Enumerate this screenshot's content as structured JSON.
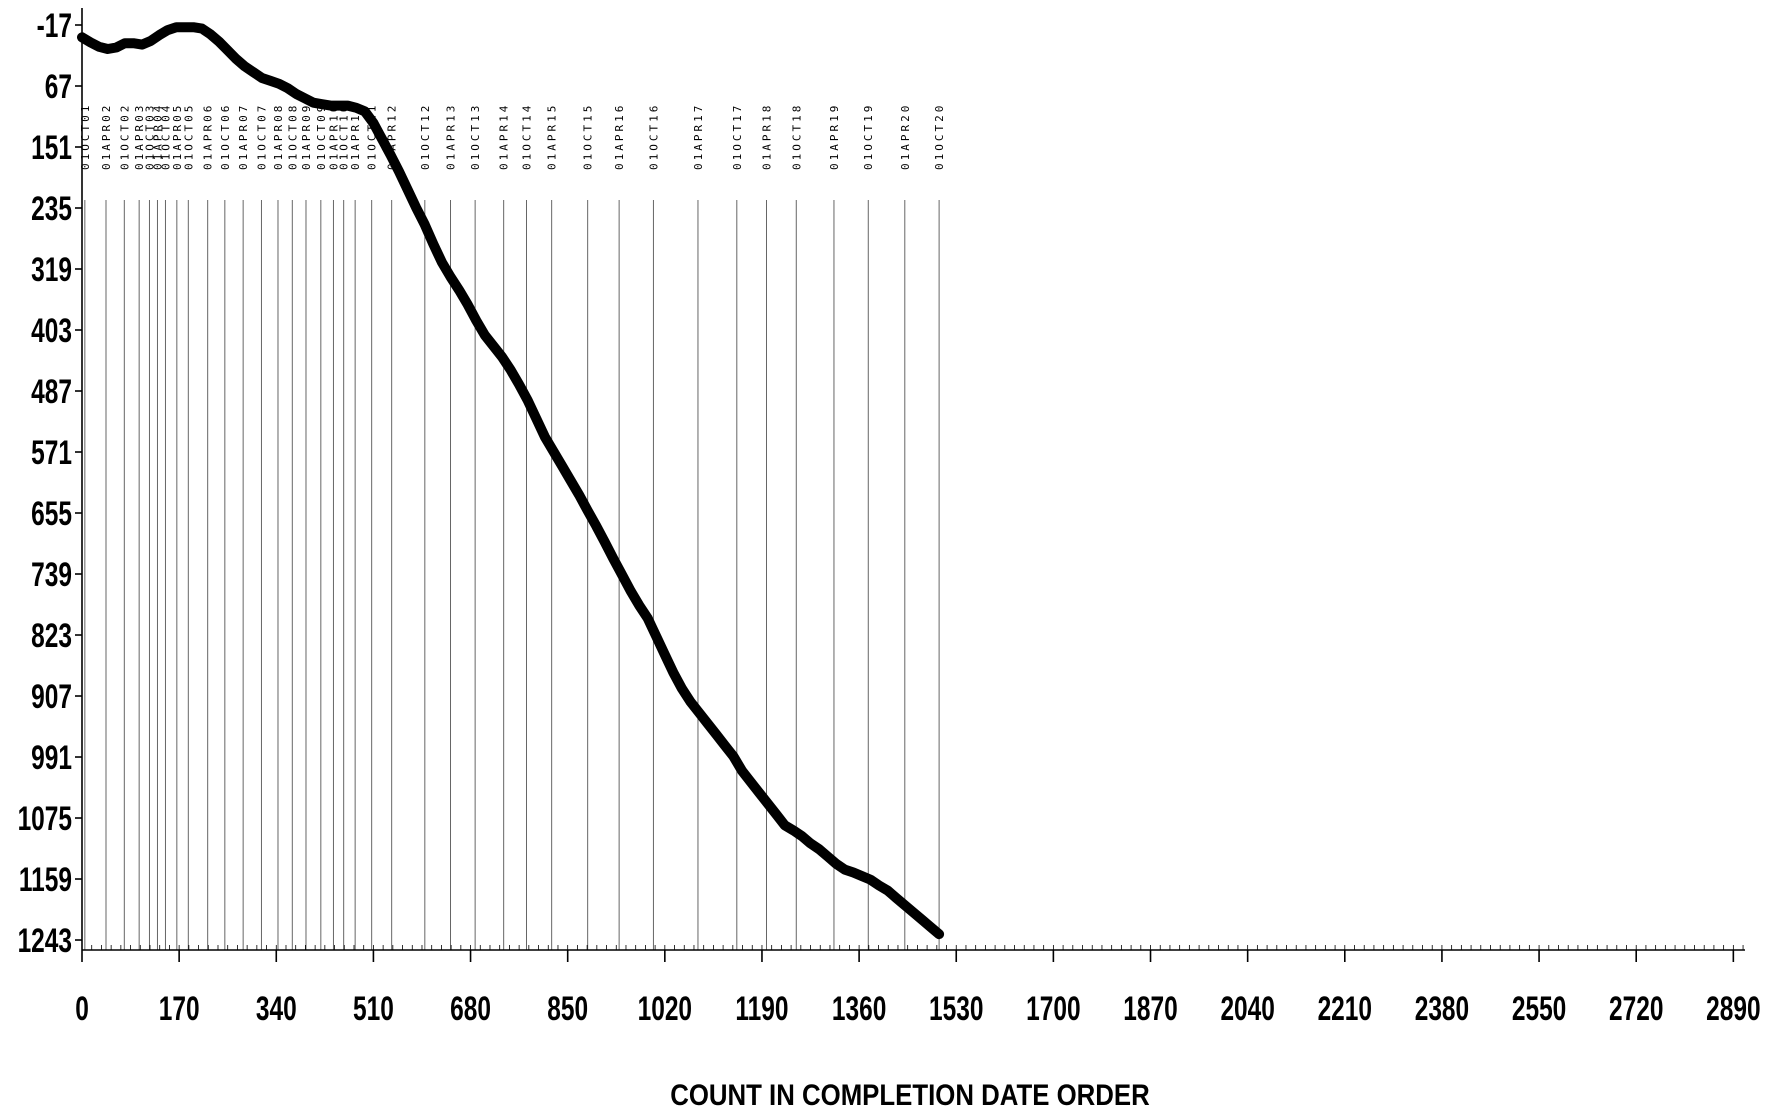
{
  "chart_data": {
    "type": "line",
    "title": "",
    "xlabel": "COUNT IN COMPLETION DATE ORDER",
    "ylabel": "",
    "xlim": [
      0,
      2920
    ],
    "ylim": [
      -17,
      1243
    ],
    "y_inverted": true,
    "x_ticks": [
      0,
      170,
      340,
      510,
      680,
      850,
      1020,
      1190,
      1360,
      1530,
      1700,
      1870,
      2040,
      2210,
      2380,
      2550,
      2720,
      2890
    ],
    "y_ticks": [
      -17,
      67,
      151,
      235,
      319,
      403,
      487,
      571,
      655,
      739,
      823,
      907,
      991,
      1075,
      1159,
      1243
    ],
    "series": [
      {
        "color": "#000000",
        "x": [
          0,
          15,
          30,
          45,
          60,
          75,
          90,
          105,
          120,
          135,
          150,
          165,
          180,
          195,
          210,
          225,
          240,
          255,
          270,
          285,
          300,
          315,
          330,
          345,
          360,
          375,
          390,
          405,
          420,
          435,
          450,
          465,
          480,
          495,
          510,
          525,
          540,
          555,
          570,
          585,
          600,
          615,
          630,
          645,
          660,
          675,
          690,
          705,
          720,
          735,
          750,
          765,
          780,
          795,
          810,
          825,
          840,
          855,
          870,
          885,
          900,
          915,
          930,
          945,
          960,
          975,
          990,
          1005,
          1020,
          1035,
          1050,
          1065,
          1080,
          1095,
          1110,
          1125,
          1140,
          1155,
          1170,
          1185,
          1200,
          1215,
          1230,
          1245,
          1260,
          1275,
          1290,
          1305,
          1320,
          1335,
          1350,
          1365,
          1380,
          1395,
          1410,
          1425,
          1440,
          1455,
          1470,
          1485,
          1500
        ],
        "y": [
          0,
          7,
          13,
          16,
          14,
          8,
          8,
          10,
          5,
          -3,
          -10,
          -14,
          -14,
          -14,
          -12,
          -4,
          6,
          18,
          30,
          40,
          48,
          56,
          60,
          64,
          70,
          78,
          84,
          90,
          92,
          94,
          94,
          94,
          97,
          102,
          118,
          140,
          162,
          185,
          210,
          235,
          258,
          285,
          310,
          330,
          348,
          368,
          390,
          410,
          425,
          440,
          458,
          478,
          500,
          525,
          550,
          570,
          590,
          610,
          630,
          652,
          673,
          695,
          718,
          740,
          762,
          782,
          800,
          825,
          850,
          875,
          897,
          915,
          930,
          945,
          960,
          975,
          990,
          1010,
          1025,
          1040,
          1055,
          1070,
          1085,
          1092,
          1100,
          1110,
          1118,
          1128,
          1138,
          1146,
          1150,
          1155,
          1160,
          1168,
          1175,
          1185,
          1195,
          1205,
          1215,
          1225,
          1235
        ]
      }
    ],
    "date_markers": [
      {
        "x": 5,
        "label": "01OCT01"
      },
      {
        "x": 42,
        "label": "01APR02"
      },
      {
        "x": 74,
        "label": "01OCT02"
      },
      {
        "x": 100,
        "label": "01APR03"
      },
      {
        "x": 118,
        "label": "01OCT03"
      },
      {
        "x": 132,
        "label": "01APR04"
      },
      {
        "x": 146,
        "label": "01OCT04"
      },
      {
        "x": 166,
        "label": "01APR05"
      },
      {
        "x": 186,
        "label": "01OCT05"
      },
      {
        "x": 220,
        "label": "01APR06"
      },
      {
        "x": 250,
        "label": "01OCT06"
      },
      {
        "x": 282,
        "label": "01APR07"
      },
      {
        "x": 314,
        "label": "01OCT07"
      },
      {
        "x": 343,
        "label": "01APR08"
      },
      {
        "x": 368,
        "label": "01OCT08"
      },
      {
        "x": 392,
        "label": "01APR09"
      },
      {
        "x": 418,
        "label": "01OCT09"
      },
      {
        "x": 440,
        "label": "01APR10"
      },
      {
        "x": 458,
        "label": "01OCT10"
      },
      {
        "x": 478,
        "label": "01APR11"
      },
      {
        "x": 507,
        "label": "01OCT11"
      },
      {
        "x": 542,
        "label": "01APR12"
      },
      {
        "x": 600,
        "label": "01OCT12"
      },
      {
        "x": 645,
        "label": "01APR13"
      },
      {
        "x": 688,
        "label": "01OCT13"
      },
      {
        "x": 738,
        "label": "01APR14"
      },
      {
        "x": 778,
        "label": "01OCT14"
      },
      {
        "x": 822,
        "label": "01APR15"
      },
      {
        "x": 885,
        "label": "01OCT15"
      },
      {
        "x": 940,
        "label": "01APR16"
      },
      {
        "x": 1000,
        "label": "01OCT16"
      },
      {
        "x": 1078,
        "label": "01APR17"
      },
      {
        "x": 1146,
        "label": "01OCT17"
      },
      {
        "x": 1198,
        "label": "01APR18"
      },
      {
        "x": 1250,
        "label": "01OCT18"
      },
      {
        "x": 1316,
        "label": "01APR19"
      },
      {
        "x": 1376,
        "label": "01OCT19"
      },
      {
        "x": 1440,
        "label": "01APR20"
      },
      {
        "x": 1500,
        "label": "01OCT20"
      }
    ]
  }
}
